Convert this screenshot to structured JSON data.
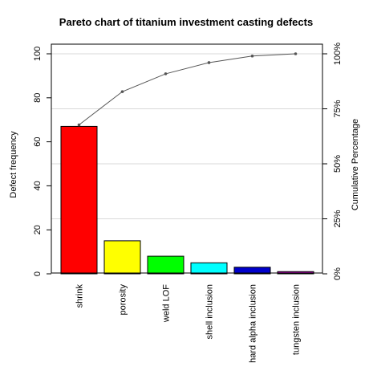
{
  "chart_data": {
    "type": "bar",
    "title": "Pareto chart of titanium investment casting defects",
    "ylabel": "Defect frequency",
    "y2label": "Cumulative Percentage",
    "categories": [
      "shrink",
      "porosity",
      "weld LOF",
      "shell inclusion",
      "hard alpha inclusion",
      "tungsten inclusion"
    ],
    "values": [
      67,
      15,
      8,
      5,
      3,
      1
    ],
    "colors": [
      "#ff0000",
      "#ffff00",
      "#00ff00",
      "#00ffff",
      "#0000cc",
      "#cc00cc"
    ],
    "cumulative_percent": [
      67.7,
      82.8,
      90.9,
      96.0,
      99.0,
      100.0
    ],
    "ylim": [
      0,
      100
    ],
    "y_ticks": [
      "0",
      "20",
      "40",
      "60",
      "80",
      "100"
    ],
    "y2_ticks": [
      "0%",
      "25%",
      "50%",
      "75%",
      "100%"
    ],
    "grid": "horizontal at 25% intervals of right axis"
  }
}
